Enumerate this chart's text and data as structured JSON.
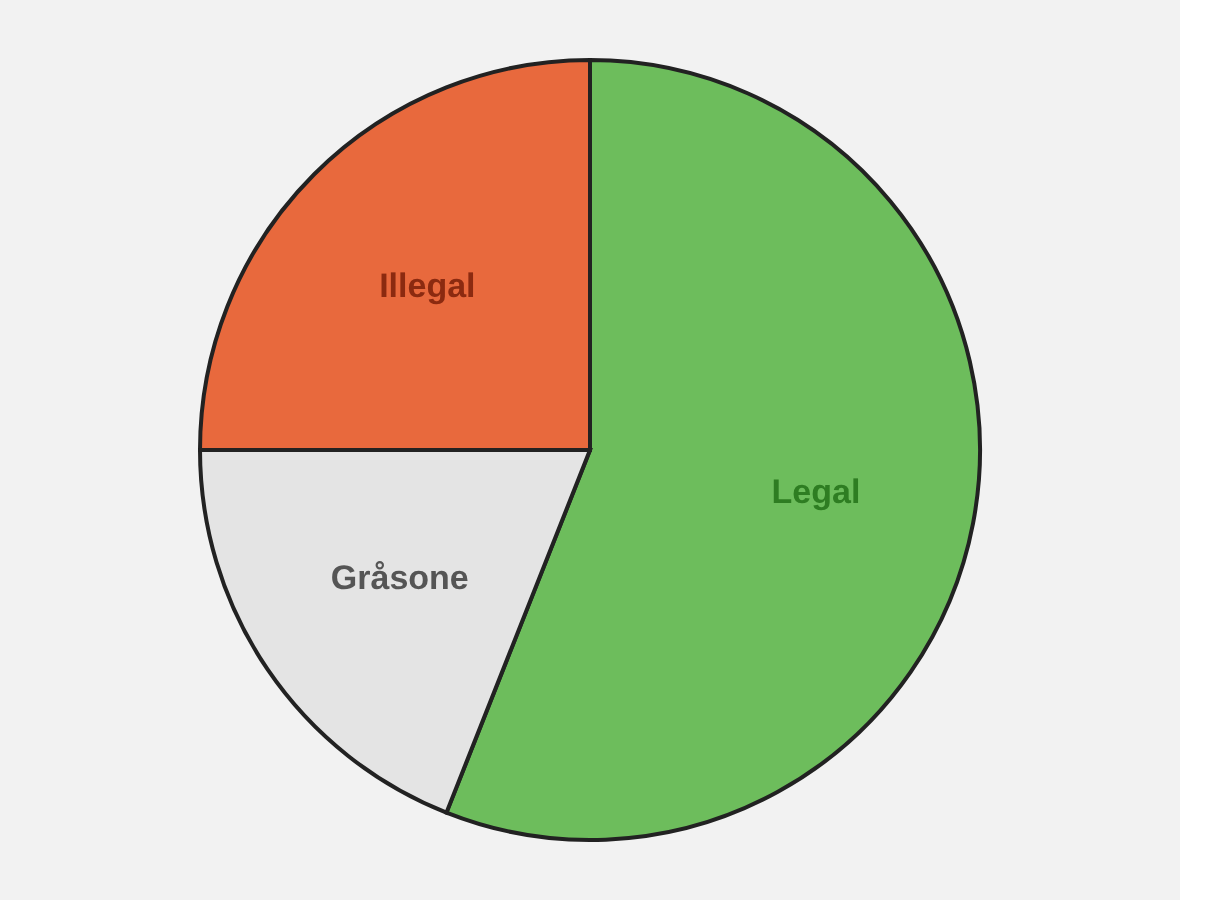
{
  "chart_data": {
    "type": "pie",
    "categories": [
      "Legal",
      "Gråsone",
      "Illegal"
    ],
    "values": [
      56,
      19,
      25
    ],
    "colors": [
      "#6dbd5c",
      "#e4e4e4",
      "#e8693d"
    ]
  }
}
